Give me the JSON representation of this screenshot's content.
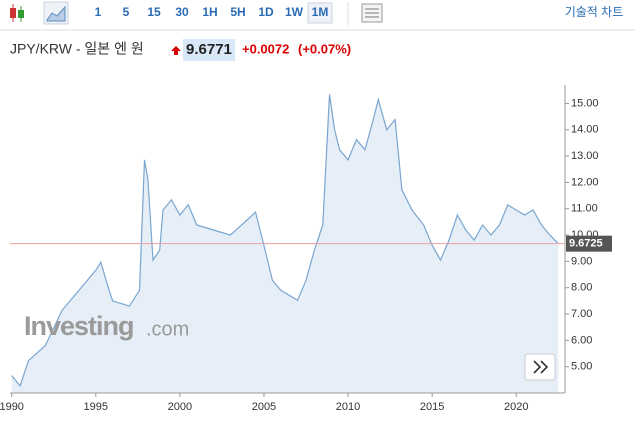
{
  "toolbar": {
    "intervals": [
      "1",
      "5",
      "15",
      "30",
      "1H",
      "5H",
      "1D",
      "1W",
      "1M"
    ],
    "active_index": 8,
    "technical": "기술적 차트"
  },
  "header": {
    "symbol": "JPY/KRW - 일본 엔 원",
    "price": "9.6771",
    "change": "+0.0072",
    "change_pct": "(+0.07%)"
  },
  "watermark": {
    "brand": "Investing",
    "suffix": ".com"
  },
  "chart_data": {
    "type": "area",
    "x": [
      1990.0,
      1990.5,
      1991.0,
      1992.0,
      1993.0,
      1994.0,
      1995.0,
      1995.3,
      1995.7,
      1996.0,
      1997.0,
      1997.6,
      1997.9,
      1998.1,
      1998.4,
      1998.8,
      1999.0,
      1999.5,
      2000.0,
      2000.5,
      2001.0,
      2002.0,
      2003.0,
      2004.0,
      2004.5,
      2005.0,
      2005.5,
      2006.0,
      2007.0,
      2007.5,
      2008.0,
      2008.5,
      2008.9,
      2009.2,
      2009.5,
      2010.0,
      2010.5,
      2011.0,
      2011.5,
      2011.8,
      2012.3,
      2012.8,
      2013.2,
      2013.8,
      2014.5,
      2015.0,
      2015.5,
      2016.0,
      2016.5,
      2017.0,
      2017.5,
      2018.0,
      2018.5,
      2019.0,
      2019.5,
      2020.0,
      2020.5,
      2021.0,
      2021.5,
      2022.0,
      2022.5
    ],
    "values": [
      4.66,
      4.27,
      5.23,
      5.8,
      7.14,
      7.9,
      8.66,
      8.97,
      8.1,
      7.5,
      7.3,
      7.9,
      12.86,
      12.1,
      9.05,
      9.43,
      10.95,
      11.34,
      10.76,
      11.15,
      10.38,
      10.19,
      10.0,
      10.57,
      10.87,
      9.6,
      8.28,
      7.9,
      7.52,
      8.28,
      9.43,
      10.38,
      15.34,
      14.0,
      13.24,
      12.86,
      13.63,
      13.24,
      14.39,
      15.15,
      14.0,
      14.39,
      11.72,
      10.95,
      10.38,
      9.62,
      9.05,
      9.81,
      10.76,
      10.19,
      9.81,
      10.38,
      10.0,
      10.38,
      11.15,
      10.95,
      10.76,
      10.95,
      10.38,
      10.0,
      9.67
    ],
    "color": "#7aa6cf",
    "fill": "#e6eef7",
    "last_value": 9.6725,
    "last_color": "#f0a0a0",
    "xlim": [
      1989.9,
      2022.9
    ],
    "xticks": [
      1990,
      1995,
      2000,
      2005,
      2010,
      2015,
      2020
    ],
    "ylim": [
      4.0,
      15.7
    ],
    "yticks": [
      {
        "value": 5,
        "label": "5.00"
      },
      {
        "value": 6,
        "label": "6.00"
      },
      {
        "value": 7,
        "label": "7.00"
      },
      {
        "value": 8,
        "label": "8.00"
      },
      {
        "value": 9,
        "label": "9.00"
      },
      {
        "value": 10,
        "label": "10.00"
      },
      {
        "value": 11,
        "label": "11.00"
      },
      {
        "value": 12,
        "label": "12.00"
      },
      {
        "value": 13,
        "label": "13.00"
      },
      {
        "value": 14,
        "label": "14.00"
      },
      {
        "value": 15,
        "label": "15.00"
      }
    ]
  }
}
